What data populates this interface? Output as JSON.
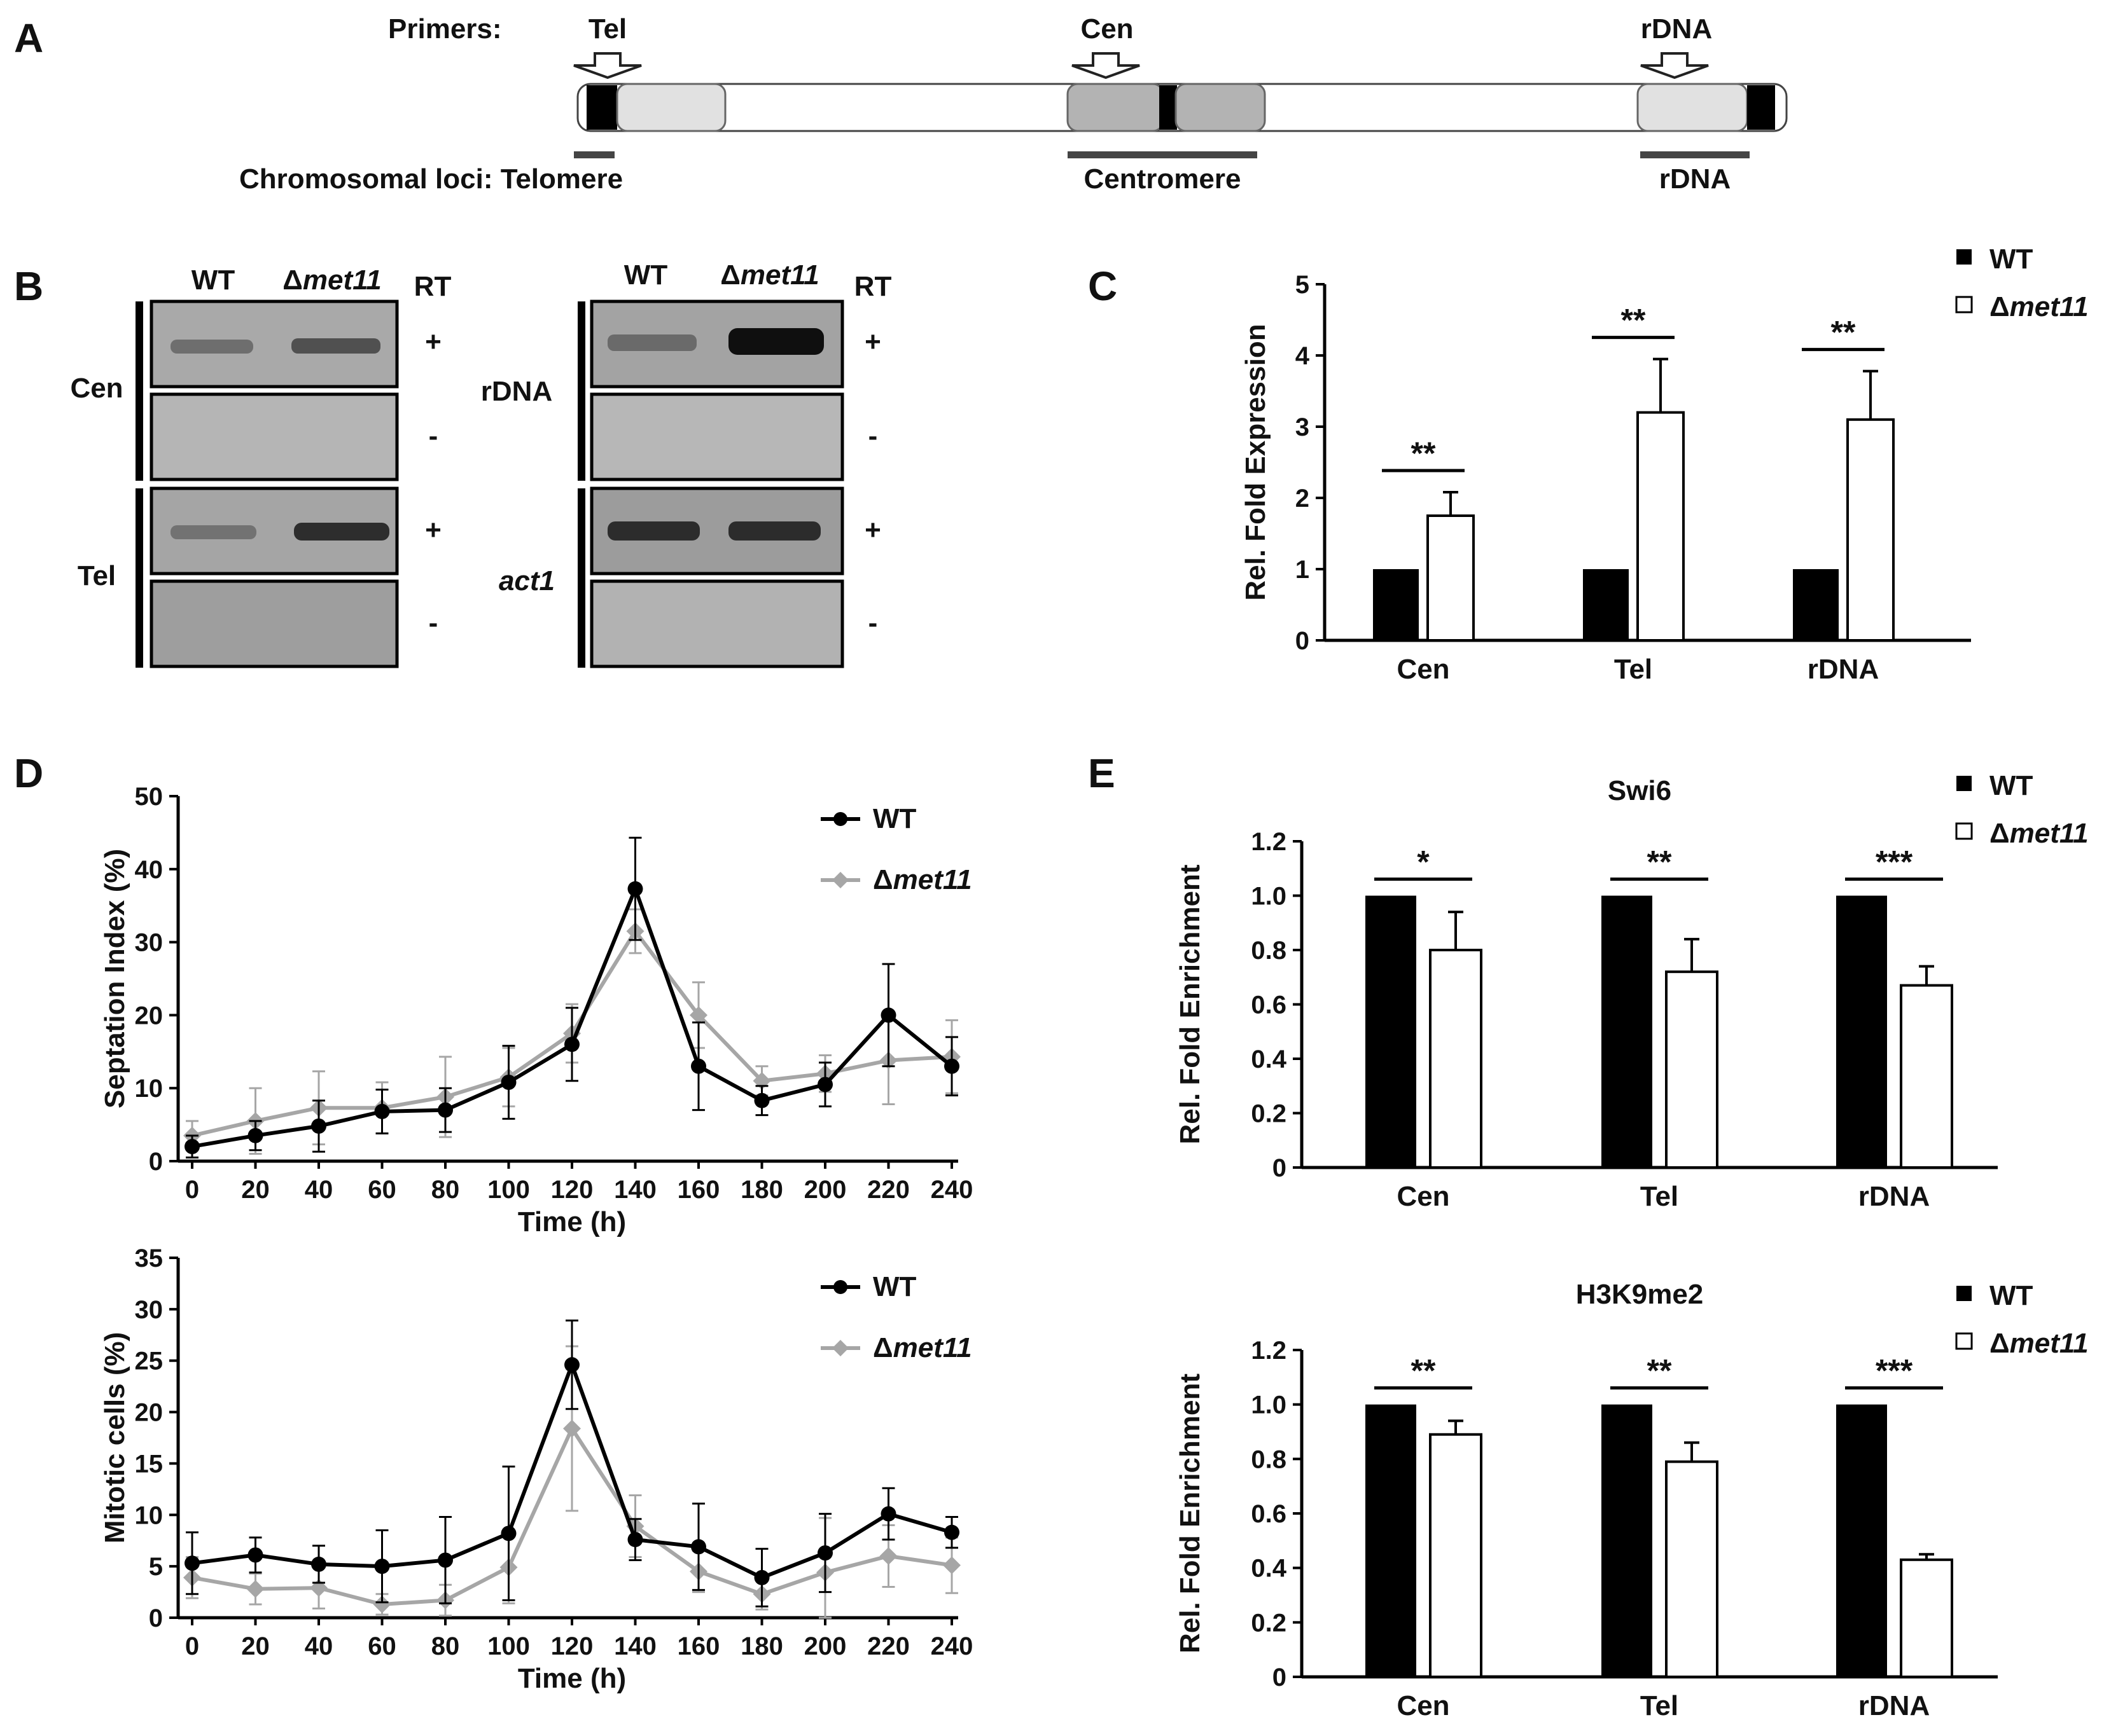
{
  "panel_a": {
    "letter": "A",
    "primers_label": "Primers:",
    "primer_tel": "Tel",
    "primer_cen": "Cen",
    "primer_rdna": "rDNA",
    "loci_label": "Chromosomal loci: Telomere",
    "loci_centromere": "Centromere",
    "loci_rdna": "rDNA"
  },
  "panel_b": {
    "letter": "B",
    "left": {
      "col_wt": "WT",
      "col_mut_delta": "Δ",
      "col_mut_name": "met11",
      "rt": "RT",
      "row1": "Cen",
      "row2": "Tel",
      "plus": "+",
      "minus": "-"
    },
    "right": {
      "col_wt": "WT",
      "col_mut_delta": "Δ",
      "col_mut_name": "met11",
      "rt": "RT",
      "row1": "rDNA",
      "row2": "act1",
      "plus": "+",
      "minus": "-"
    }
  },
  "panel_letters": {
    "c": "C",
    "d": "D",
    "e": "E"
  },
  "legend": {
    "wt": "WT",
    "mut_delta": "Δ",
    "mut_name": "met11"
  },
  "chart_data": [
    {
      "id": "C",
      "type": "bar",
      "ylabel": "Rel. Fold Expression",
      "xlabel": "",
      "ylim": [
        0,
        5
      ],
      "yticks": [
        "0",
        "1",
        "2",
        "3",
        "4",
        "5"
      ],
      "categories": [
        "Cen",
        "Tel",
        "rDNA"
      ],
      "series": [
        {
          "name": "WT",
          "values": [
            1.0,
            1.0,
            1.0
          ],
          "errors": [
            0,
            0,
            0
          ],
          "color": "#000000"
        },
        {
          "name": "Δmet11",
          "values": [
            1.75,
            3.2,
            3.1
          ],
          "errors": [
            0.33,
            0.75,
            0.68
          ],
          "color": "#ffffff"
        }
      ],
      "significance": [
        "**",
        "**",
        "**"
      ]
    },
    {
      "id": "D1",
      "type": "line",
      "ylabel": "Septation Index (%)",
      "xlabel": "Time (h)",
      "ylim": [
        0,
        50
      ],
      "yticks": [
        "0",
        "10",
        "20",
        "30",
        "40",
        "50"
      ],
      "x": [
        0,
        20,
        40,
        60,
        80,
        100,
        120,
        140,
        160,
        180,
        200,
        220,
        240
      ],
      "xticks": [
        "0",
        "20",
        "40",
        "60",
        "80",
        "100",
        "120",
        "140",
        "160",
        "180",
        "200",
        "220",
        "240"
      ],
      "series": [
        {
          "name": "WT",
          "color": "#000000",
          "values": [
            2,
            3.5,
            4.8,
            6.8,
            7,
            10.8,
            16,
            37.3,
            13,
            8.3,
            10.5,
            20,
            13
          ],
          "errors": [
            1.5,
            2,
            3.5,
            3,
            3,
            5,
            5,
            7,
            6,
            2,
            3,
            7,
            4
          ]
        },
        {
          "name": "Δmet11",
          "color": "#a6a6a6",
          "values": [
            3.5,
            5.5,
            7.3,
            7.3,
            8.8,
            11.5,
            17.5,
            31.5,
            20,
            11,
            12,
            13.8,
            14.3
          ],
          "errors": [
            2,
            4.5,
            5,
            3.5,
            5.5,
            4,
            4,
            3,
            4.5,
            2,
            2.5,
            6,
            5
          ]
        }
      ]
    },
    {
      "id": "D2",
      "type": "line",
      "ylabel": "Mitotic cells (%)",
      "xlabel": "Time (h)",
      "ylim": [
        0,
        35
      ],
      "yticks": [
        "0",
        "5",
        "10",
        "15",
        "20",
        "25",
        "30",
        "35"
      ],
      "x": [
        0,
        20,
        40,
        60,
        80,
        100,
        120,
        140,
        160,
        180,
        200,
        220,
        240
      ],
      "xticks": [
        "0",
        "20",
        "40",
        "60",
        "80",
        "100",
        "120",
        "140",
        "160",
        "180",
        "200",
        "220",
        "240"
      ],
      "series": [
        {
          "name": "WT",
          "color": "#000000",
          "values": [
            5.3,
            6.1,
            5.2,
            5,
            5.6,
            8.2,
            24.6,
            7.6,
            6.9,
            3.9,
            6.3,
            10.1,
            8.3
          ],
          "errors": [
            3,
            1.7,
            1.8,
            3.5,
            4.2,
            6.5,
            4.3,
            2,
            4.2,
            2.8,
            3.8,
            2.5,
            1.5
          ]
        },
        {
          "name": "Δmet11",
          "color": "#a6a6a6",
          "values": [
            3.9,
            2.8,
            2.9,
            1.3,
            1.7,
            4.9,
            18.4,
            8.9,
            4.5,
            2.3,
            4.4,
            6,
            5.1
          ],
          "errors": [
            2,
            1.5,
            2,
            1,
            1.5,
            3.5,
            8,
            3,
            2,
            1.5,
            5.3,
            3,
            2.7
          ]
        }
      ]
    },
    {
      "id": "E1",
      "type": "bar",
      "title": "Swi6",
      "ylabel": "Rel. Fold Enrichment",
      "xlabel": "",
      "ylim": [
        0,
        1.2
      ],
      "yticks": [
        "0",
        "0.2",
        "0.4",
        "0.6",
        "0.8",
        "1.0",
        "1.2"
      ],
      "categories": [
        "Cen",
        "Tel",
        "rDNA"
      ],
      "series": [
        {
          "name": "WT",
          "values": [
            1.0,
            1.0,
            1.0
          ],
          "errors": [
            0,
            0,
            0
          ],
          "color": "#000000"
        },
        {
          "name": "Δmet11",
          "values": [
            0.8,
            0.72,
            0.67
          ],
          "errors": [
            0.14,
            0.12,
            0.07
          ],
          "color": "#ffffff"
        }
      ],
      "significance": [
        "*",
        "**",
        "***"
      ]
    },
    {
      "id": "E2",
      "type": "bar",
      "title": "H3K9me2",
      "ylabel": "Rel. Fold Enrichment",
      "xlabel": "",
      "ylim": [
        0,
        1.2
      ],
      "yticks": [
        "0",
        "0.2",
        "0.4",
        "0.6",
        "0.8",
        "1.0",
        "1.2"
      ],
      "categories": [
        "Cen",
        "Tel",
        "rDNA"
      ],
      "series": [
        {
          "name": "WT",
          "values": [
            1.0,
            1.0,
            1.0
          ],
          "errors": [
            0,
            0,
            0
          ],
          "color": "#000000"
        },
        {
          "name": "Δmet11",
          "values": [
            0.89,
            0.79,
            0.43
          ],
          "errors": [
            0.05,
            0.07,
            0.02
          ],
          "color": "#ffffff"
        }
      ],
      "significance": [
        "**",
        "**",
        "***"
      ]
    }
  ]
}
